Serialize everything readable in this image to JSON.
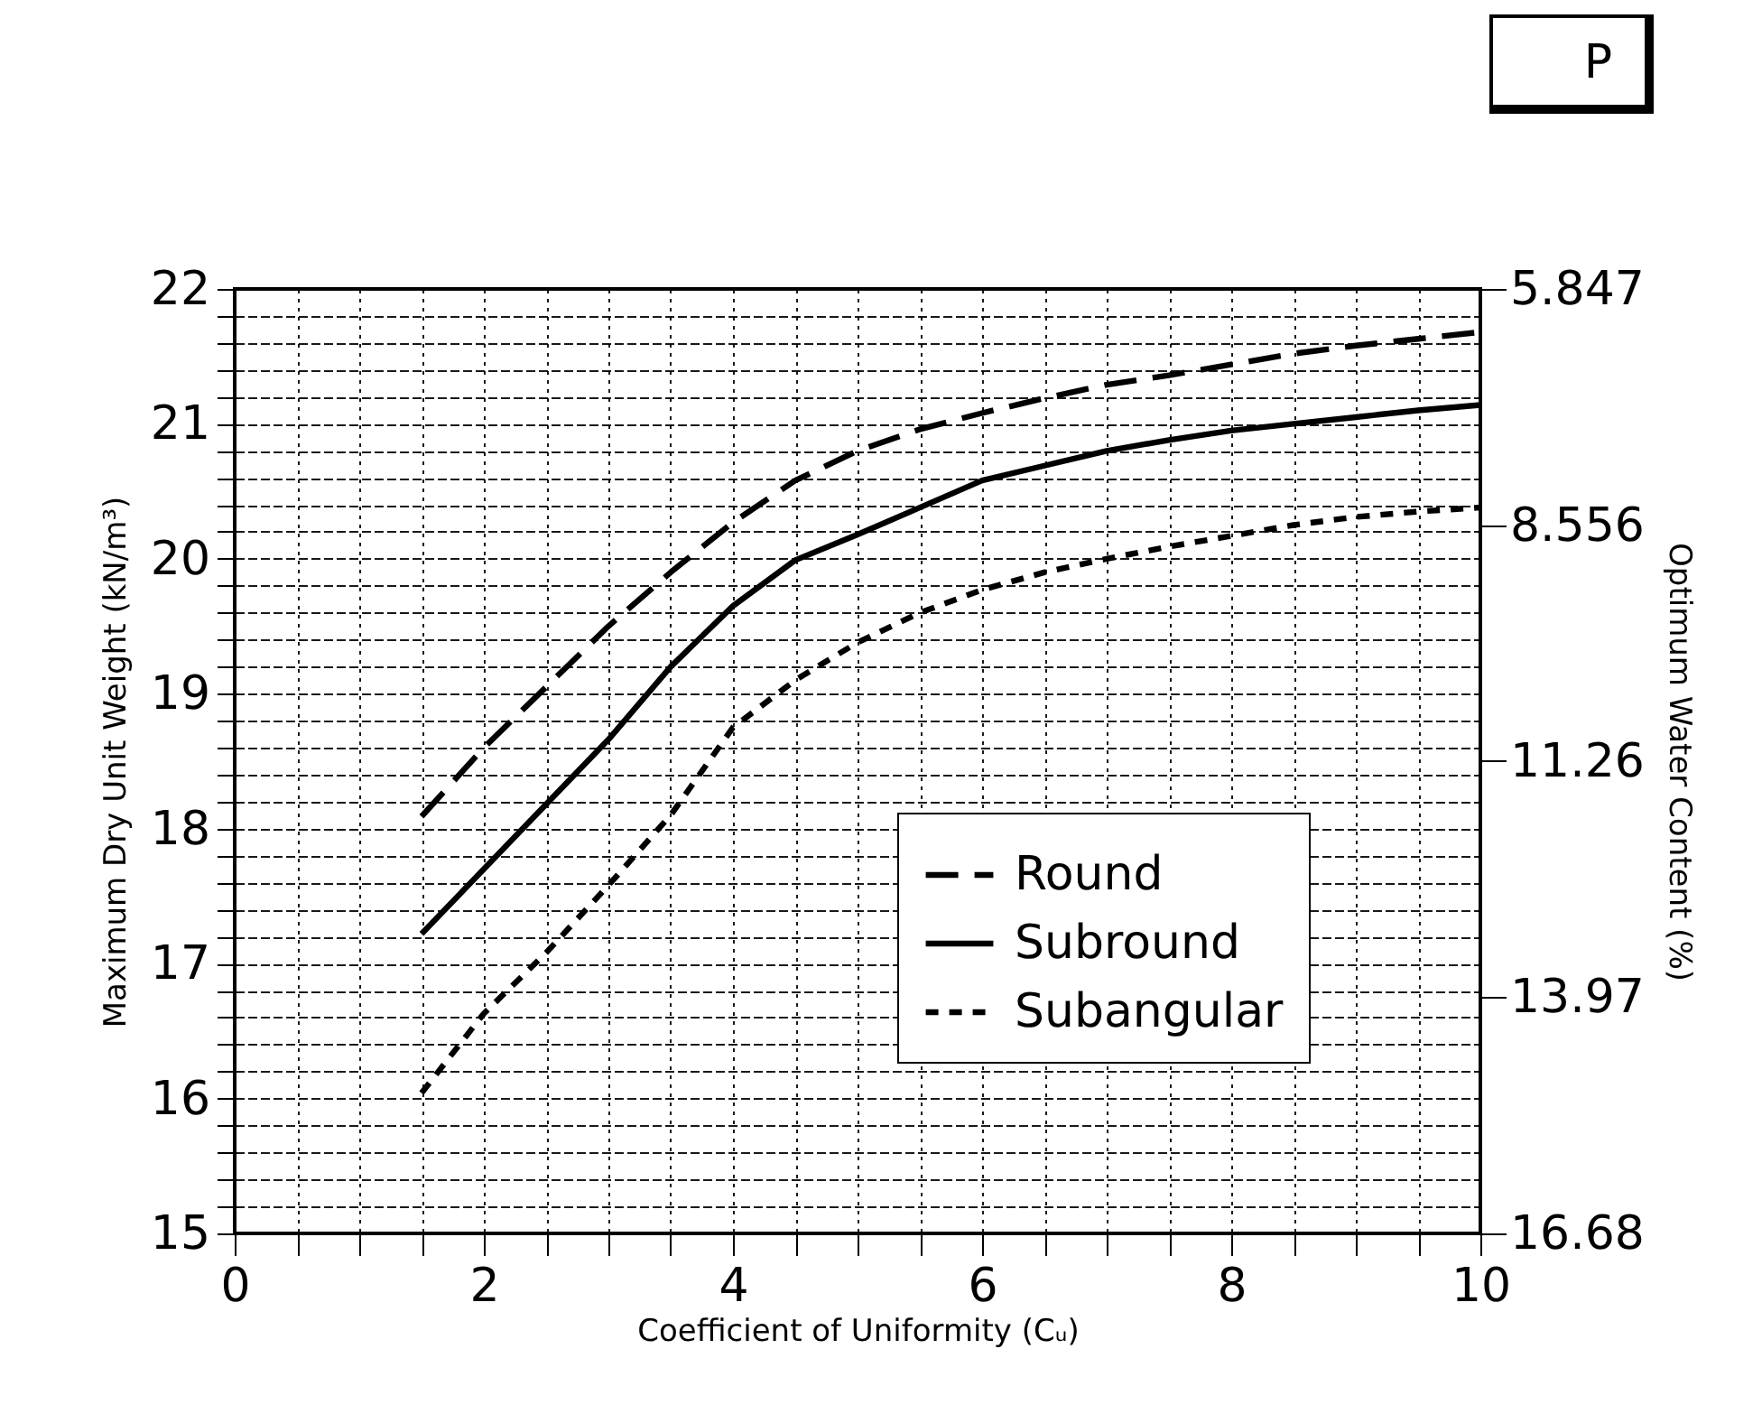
{
  "chart_data": {
    "type": "line",
    "xlabel": "Coefficient of Uniformity (Cᵤ)",
    "ylabel": "Maximum Dry Unit Weight (kN/m³)",
    "y2label": "Optimum Water Content (%)",
    "x": [
      1.5,
      2,
      2.5,
      3,
      3.5,
      4,
      4.5,
      5,
      5.5,
      6,
      6.5,
      7,
      7.5,
      8,
      8.5,
      9,
      9.5,
      10
    ],
    "series": [
      {
        "name": "Round",
        "color": "#000000",
        "line_style": "dashed",
        "values": [
          18.09,
          18.6,
          19.05,
          19.5,
          19.9,
          20.27,
          20.58,
          20.8,
          20.96,
          21.08,
          21.19,
          21.29,
          21.36,
          21.44,
          21.52,
          21.58,
          21.63,
          21.68
        ]
      },
      {
        "name": "Subround",
        "color": "#000000",
        "line_style": "solid",
        "values": [
          17.22,
          17.7,
          18.18,
          18.66,
          19.2,
          19.65,
          19.99,
          20.18,
          20.38,
          20.58,
          20.69,
          20.8,
          20.88,
          20.95,
          21.0,
          21.05,
          21.1,
          21.14
        ]
      },
      {
        "name": "Subangular",
        "color": "#000000",
        "line_style": "dotted",
        "values": [
          16.04,
          16.63,
          17.08,
          17.58,
          18.1,
          18.75,
          19.1,
          19.38,
          19.6,
          19.77,
          19.9,
          20.0,
          20.09,
          20.17,
          20.25,
          20.31,
          20.35,
          20.38
        ]
      }
    ],
    "xlim": [
      0,
      10
    ],
    "xticks": [
      0,
      {
        "value": 0.5,
        "label": null
      },
      {
        "value": 1,
        "label": null
      },
      {
        "value": 1.5,
        "label": null
      },
      2,
      {
        "value": 2.5,
        "label": null
      },
      {
        "value": 3,
        "label": null
      },
      {
        "value": 3.5,
        "label": null
      },
      4,
      {
        "value": 4.5,
        "label": null
      },
      {
        "value": 5,
        "label": null
      },
      {
        "value": 5.5,
        "label": null
      },
      6,
      {
        "value": 6.5,
        "label": null
      },
      {
        "value": 7,
        "label": null
      },
      {
        "value": 7.5,
        "label": null
      },
      8,
      {
        "value": 8.5,
        "label": null
      },
      {
        "value": 9,
        "label": null
      },
      {
        "value": 9.5,
        "label": null
      },
      10
    ],
    "ylim": [
      15,
      22
    ],
    "yticks": [
      15,
      {
        "value": 15.2,
        "label": null
      },
      {
        "value": 15.4,
        "label": null
      },
      {
        "value": 15.6,
        "label": null
      },
      {
        "value": 15.8,
        "label": null
      },
      16,
      {
        "value": 16.2,
        "label": null
      },
      {
        "value": 16.4,
        "label": null
      },
      {
        "value": 16.6,
        "label": null
      },
      {
        "value": 16.8,
        "label": null
      },
      17,
      {
        "value": 17.2,
        "label": null
      },
      {
        "value": 17.4,
        "label": null
      },
      {
        "value": 17.6,
        "label": null
      },
      {
        "value": 17.8,
        "label": null
      },
      18,
      {
        "value": 18.2,
        "label": null
      },
      {
        "value": 18.4,
        "label": null
      },
      {
        "value": 18.6,
        "label": null
      },
      {
        "value": 18.8,
        "label": null
      },
      19,
      {
        "value": 19.2,
        "label": null
      },
      {
        "value": 19.4,
        "label": null
      },
      {
        "value": 19.6,
        "label": null
      },
      {
        "value": 19.8,
        "label": null
      },
      20,
      {
        "value": 20.2,
        "label": null
      },
      {
        "value": 20.4,
        "label": null
      },
      {
        "value": 20.6,
        "label": null
      },
      {
        "value": 20.8,
        "label": null
      },
      21,
      {
        "value": 21.2,
        "label": null
      },
      {
        "value": 21.4,
        "label": null
      },
      {
        "value": 21.6,
        "label": null
      },
      {
        "value": 21.8,
        "label": null
      },
      22
    ],
    "y2lim": [
      16.68,
      5.847
    ],
    "y2ticks": [
      16.68,
      13.97,
      11.26,
      8.556,
      5.847
    ],
    "grid": true,
    "legend": "bottom right",
    "annotations": [
      "P"
    ]
  }
}
